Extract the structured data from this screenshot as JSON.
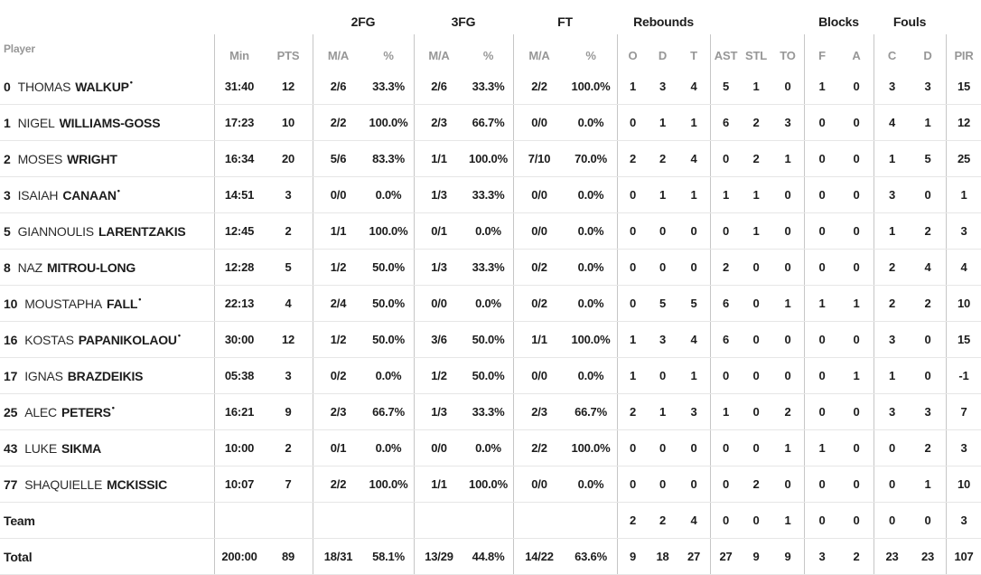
{
  "colors": {
    "background": "#ffffff",
    "text": "#1c1c1c",
    "muted_header": "#979797",
    "column_divider": "#c6c6c6",
    "row_divider": "#e6e6e6"
  },
  "table": {
    "groups": {
      "fg2": "2FG",
      "fg3": "3FG",
      "ft": "FT",
      "rebounds": "Rebounds",
      "blocks": "Blocks",
      "fouls": "Fouls"
    },
    "columns": {
      "player": "Player",
      "min": "Min",
      "pts": "PTS",
      "ma": "M/A",
      "pct": "%",
      "reb_o": "O",
      "reb_d": "D",
      "reb_t": "T",
      "ast": "AST",
      "stl": "STL",
      "to": "TO",
      "blk_f": "F",
      "blk_a": "A",
      "foul_c": "C",
      "foul_d": "D",
      "pir": "PIR"
    },
    "starter_marker": "•",
    "rows": [
      {
        "num": "0",
        "first": "THOMAS",
        "last": "WALKUP",
        "starter": true,
        "cells": [
          "31:40",
          "12",
          "2/6",
          "33.3%",
          "2/6",
          "33.3%",
          "2/2",
          "100.0%",
          "1",
          "3",
          "4",
          "5",
          "1",
          "0",
          "1",
          "0",
          "3",
          "3",
          "15"
        ]
      },
      {
        "num": "1",
        "first": "NIGEL",
        "last": "WILLIAMS-GOSS",
        "starter": false,
        "cells": [
          "17:23",
          "10",
          "2/2",
          "100.0%",
          "2/3",
          "66.7%",
          "0/0",
          "0.0%",
          "0",
          "1",
          "1",
          "6",
          "2",
          "3",
          "0",
          "0",
          "4",
          "1",
          "12"
        ]
      },
      {
        "num": "2",
        "first": "MOSES",
        "last": "WRIGHT",
        "starter": false,
        "cells": [
          "16:34",
          "20",
          "5/6",
          "83.3%",
          "1/1",
          "100.0%",
          "7/10",
          "70.0%",
          "2",
          "2",
          "4",
          "0",
          "2",
          "1",
          "0",
          "0",
          "1",
          "5",
          "25"
        ]
      },
      {
        "num": "3",
        "first": "ISAIAH",
        "last": "CANAAN",
        "starter": true,
        "cells": [
          "14:51",
          "3",
          "0/0",
          "0.0%",
          "1/3",
          "33.3%",
          "0/0",
          "0.0%",
          "0",
          "1",
          "1",
          "1",
          "1",
          "0",
          "0",
          "0",
          "3",
          "0",
          "1"
        ]
      },
      {
        "num": "5",
        "first": "GIANNOULIS",
        "last": "LARENTZAKIS",
        "starter": false,
        "cells": [
          "12:45",
          "2",
          "1/1",
          "100.0%",
          "0/1",
          "0.0%",
          "0/0",
          "0.0%",
          "0",
          "0",
          "0",
          "0",
          "1",
          "0",
          "0",
          "0",
          "1",
          "2",
          "3"
        ]
      },
      {
        "num": "8",
        "first": "NAZ",
        "last": "MITROU-LONG",
        "starter": false,
        "cells": [
          "12:28",
          "5",
          "1/2",
          "50.0%",
          "1/3",
          "33.3%",
          "0/2",
          "0.0%",
          "0",
          "0",
          "0",
          "2",
          "0",
          "0",
          "0",
          "0",
          "2",
          "4",
          "4"
        ]
      },
      {
        "num": "10",
        "first": "MOUSTAPHA",
        "last": "FALL",
        "starter": true,
        "cells": [
          "22:13",
          "4",
          "2/4",
          "50.0%",
          "0/0",
          "0.0%",
          "0/2",
          "0.0%",
          "0",
          "5",
          "5",
          "6",
          "0",
          "1",
          "1",
          "1",
          "2",
          "2",
          "10"
        ]
      },
      {
        "num": "16",
        "first": "KOSTAS",
        "last": "PAPANIKOLAOU",
        "starter": true,
        "cells": [
          "30:00",
          "12",
          "1/2",
          "50.0%",
          "3/6",
          "50.0%",
          "1/1",
          "100.0%",
          "1",
          "3",
          "4",
          "6",
          "0",
          "0",
          "0",
          "0",
          "3",
          "0",
          "15"
        ]
      },
      {
        "num": "17",
        "first": "IGNAS",
        "last": "BRAZDEIKIS",
        "starter": false,
        "cells": [
          "05:38",
          "3",
          "0/2",
          "0.0%",
          "1/2",
          "50.0%",
          "0/0",
          "0.0%",
          "1",
          "0",
          "1",
          "0",
          "0",
          "0",
          "0",
          "1",
          "1",
          "0",
          "-1"
        ]
      },
      {
        "num": "25",
        "first": "ALEC",
        "last": "PETERS",
        "starter": true,
        "cells": [
          "16:21",
          "9",
          "2/3",
          "66.7%",
          "1/3",
          "33.3%",
          "2/3",
          "66.7%",
          "2",
          "1",
          "3",
          "1",
          "0",
          "2",
          "0",
          "0",
          "3",
          "3",
          "7"
        ]
      },
      {
        "num": "43",
        "first": "LUKE",
        "last": "SIKMA",
        "starter": false,
        "cells": [
          "10:00",
          "2",
          "0/1",
          "0.0%",
          "0/0",
          "0.0%",
          "2/2",
          "100.0%",
          "0",
          "0",
          "0",
          "0",
          "0",
          "1",
          "1",
          "0",
          "0",
          "2",
          "3"
        ]
      },
      {
        "num": "77",
        "first": "SHAQUIELLE",
        "last": "MCKISSIC",
        "starter": false,
        "cells": [
          "10:07",
          "7",
          "2/2",
          "100.0%",
          "1/1",
          "100.0%",
          "0/0",
          "0.0%",
          "0",
          "0",
          "0",
          "0",
          "2",
          "0",
          "0",
          "0",
          "0",
          "1",
          "10"
        ]
      }
    ],
    "team_row": {
      "label": "Team",
      "cells": [
        "",
        "",
        "",
        "",
        "",
        "",
        "",
        "",
        "2",
        "2",
        "4",
        "0",
        "0",
        "1",
        "0",
        "0",
        "0",
        "0",
        "3"
      ]
    },
    "total_row": {
      "label": "Total",
      "cells": [
        "200:00",
        "89",
        "18/31",
        "58.1%",
        "13/29",
        "44.8%",
        "14/22",
        "63.6%",
        "9",
        "18",
        "27",
        "27",
        "9",
        "9",
        "3",
        "2",
        "23",
        "23",
        "107"
      ]
    }
  }
}
